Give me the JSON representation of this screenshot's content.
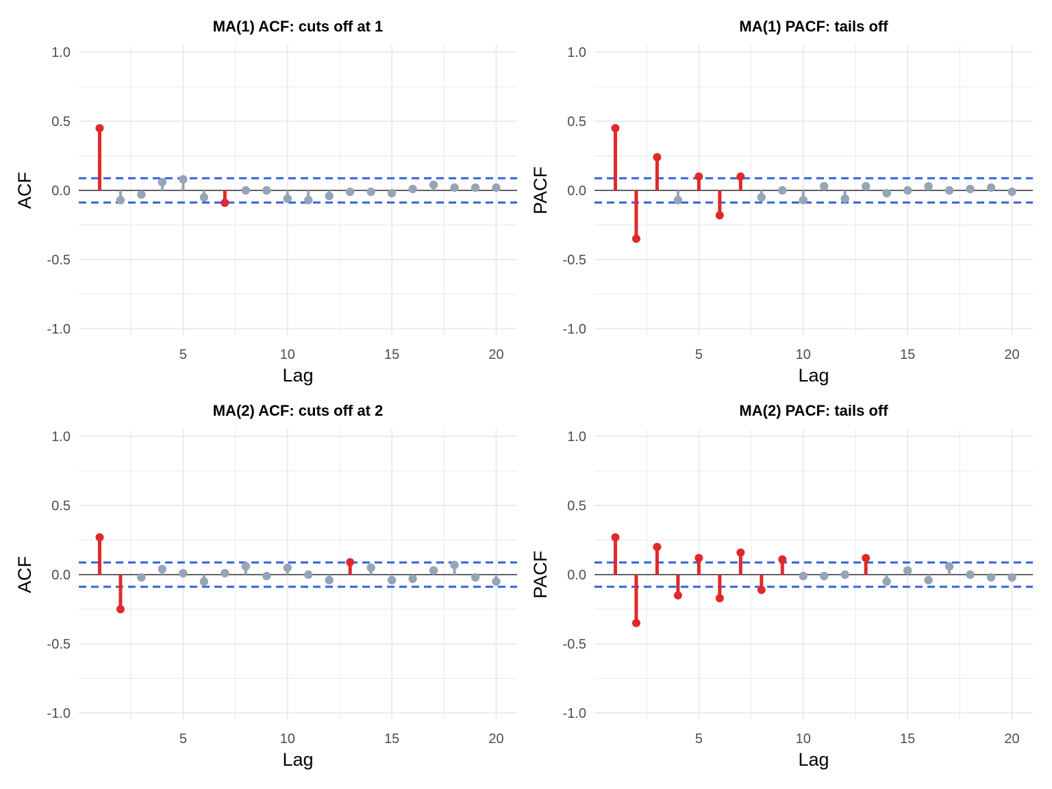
{
  "colors": {
    "significant": "#e0292b",
    "nonsignificant": "#97a3b6",
    "band": "#2f62de",
    "zero": "#333333",
    "grid": "#ebebeb"
  },
  "chart_data": [
    {
      "type": "lollipop",
      "title": "MA(1) ACF: cuts off at 1",
      "xlabel": "Lag",
      "ylabel": "ACF",
      "xlim": [
        0,
        21
      ],
      "ylim": [
        -1.05,
        1.05
      ],
      "xticks": [
        5,
        10,
        15,
        20
      ],
      "yticks": [
        -1.0,
        -0.5,
        0.0,
        0.5,
        1.0
      ],
      "ytick_labels": [
        "-1.0",
        "-0.5",
        "0.0",
        "0.5",
        "1.0"
      ],
      "confidence_band": 0.088,
      "grid": true,
      "x": [
        1,
        2,
        3,
        4,
        5,
        6,
        7,
        8,
        9,
        10,
        11,
        12,
        13,
        14,
        15,
        16,
        17,
        18,
        19,
        20
      ],
      "values": [
        0.45,
        -0.07,
        -0.03,
        0.06,
        0.08,
        -0.05,
        -0.09,
        0.0,
        0.0,
        -0.06,
        -0.07,
        -0.04,
        -0.01,
        -0.01,
        -0.02,
        0.01,
        0.04,
        0.02,
        0.02,
        0.02
      ]
    },
    {
      "type": "lollipop",
      "title": "MA(1) PACF: tails off",
      "xlabel": "Lag",
      "ylabel": "PACF",
      "xlim": [
        0,
        21
      ],
      "ylim": [
        -1.05,
        1.05
      ],
      "xticks": [
        5,
        10,
        15,
        20
      ],
      "yticks": [
        -1.0,
        -0.5,
        0.0,
        0.5,
        1.0
      ],
      "ytick_labels": [
        "-1.0",
        "-0.5",
        "0.0",
        "0.5",
        "1.0"
      ],
      "confidence_band": 0.088,
      "grid": true,
      "x": [
        1,
        2,
        3,
        4,
        5,
        6,
        7,
        8,
        9,
        10,
        11,
        12,
        13,
        14,
        15,
        16,
        17,
        18,
        19,
        20
      ],
      "values": [
        0.45,
        -0.35,
        0.24,
        -0.07,
        0.1,
        -0.18,
        0.1,
        -0.05,
        0.0,
        -0.07,
        0.03,
        -0.06,
        0.03,
        -0.02,
        0.0,
        0.03,
        0.0,
        0.01,
        0.02,
        -0.01
      ]
    },
    {
      "type": "lollipop",
      "title": "MA(2) ACF: cuts off at 2",
      "xlabel": "Lag",
      "ylabel": "ACF",
      "xlim": [
        0,
        21
      ],
      "ylim": [
        -1.05,
        1.05
      ],
      "xticks": [
        5,
        10,
        15,
        20
      ],
      "yticks": [
        -1.0,
        -0.5,
        0.0,
        0.5,
        1.0
      ],
      "ytick_labels": [
        "-1.0",
        "-0.5",
        "0.0",
        "0.5",
        "1.0"
      ],
      "confidence_band": 0.088,
      "grid": true,
      "x": [
        1,
        2,
        3,
        4,
        5,
        6,
        7,
        8,
        9,
        10,
        11,
        12,
        13,
        14,
        15,
        16,
        17,
        18,
        19,
        20
      ],
      "values": [
        0.27,
        -0.25,
        -0.02,
        0.04,
        0.01,
        -0.05,
        0.01,
        0.06,
        -0.01,
        0.05,
        0.0,
        -0.04,
        0.09,
        0.05,
        -0.04,
        -0.03,
        0.03,
        0.07,
        -0.02,
        -0.05
      ]
    },
    {
      "type": "lollipop",
      "title": "MA(2) PACF: tails off",
      "xlabel": "Lag",
      "ylabel": "PACF",
      "xlim": [
        0,
        21
      ],
      "ylim": [
        -1.05,
        1.05
      ],
      "xticks": [
        5,
        10,
        15,
        20
      ],
      "yticks": [
        -1.0,
        -0.5,
        0.0,
        0.5,
        1.0
      ],
      "ytick_labels": [
        "-1.0",
        "-0.5",
        "0.0",
        "0.5",
        "1.0"
      ],
      "confidence_band": 0.088,
      "grid": true,
      "x": [
        1,
        2,
        3,
        4,
        5,
        6,
        7,
        8,
        9,
        10,
        11,
        12,
        13,
        14,
        15,
        16,
        17,
        18,
        19,
        20
      ],
      "values": [
        0.27,
        -0.35,
        0.2,
        -0.15,
        0.12,
        -0.17,
        0.16,
        -0.11,
        0.11,
        -0.01,
        -0.01,
        0.0,
        0.12,
        -0.05,
        0.03,
        -0.04,
        0.06,
        0.0,
        -0.02,
        -0.02
      ]
    }
  ]
}
